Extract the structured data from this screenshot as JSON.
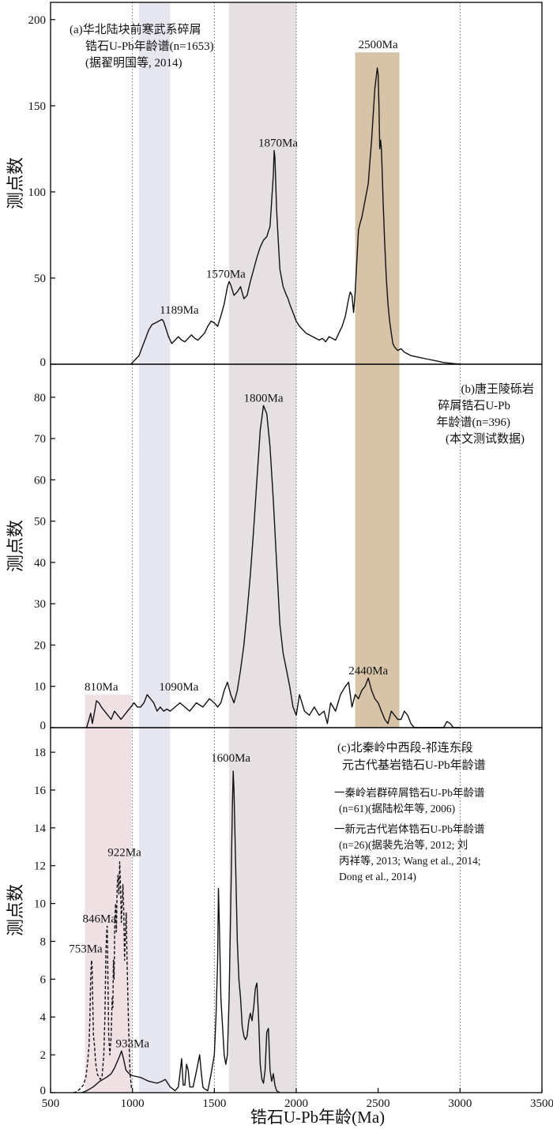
{
  "chart_data": {
    "type": "line",
    "xlabel": "锆石U-Pb年龄(Ma)",
    "xlim": [
      500,
      3500
    ],
    "xticks": [
      500,
      1000,
      1500,
      2000,
      2500,
      3000,
      3500
    ],
    "ref_lines_x": [
      1000,
      1500,
      2000,
      3000
    ],
    "colors": {
      "blue_band": "#e6e6f0",
      "grey_band": "#e7e0e2",
      "brown_band": "#d7c4a8",
      "pink_band": "#f0e2e4",
      "curve": "#111111"
    },
    "panels": [
      {
        "id": "a",
        "ylabel": "测点数",
        "ylim": [
          0,
          210
        ],
        "yticks": [
          0,
          50,
          100,
          150,
          200
        ],
        "annotation": [
          "(a)华北陆块前寒武系碎屑",
          "锆石U-Pb年龄谱(n=1653)",
          "(据翟明国等, 2014)"
        ],
        "bands": [
          {
            "from": 1040,
            "to": 1230,
            "color": "blue_band"
          },
          {
            "from": 1590,
            "to": 2000,
            "color": "grey_band"
          },
          {
            "from": 2360,
            "to": 2630,
            "color": "brown_band",
            "ymax": 181
          }
        ],
        "peak_labels": [
          {
            "text": "1189Ma",
            "x": 1189,
            "y": 27
          },
          {
            "text": "1570Ma",
            "x": 1570,
            "y": 48
          },
          {
            "text": "1870Ma",
            "x": 1870,
            "y": 124
          },
          {
            "text": "2500Ma",
            "x": 2500,
            "y": 181
          }
        ],
        "series": [
          {
            "style": "solid",
            "x": [
              990,
              1000,
              1020,
              1040,
              1060,
              1080,
              1100,
              1120,
              1140,
              1160,
              1180,
              1189,
              1200,
              1220,
              1240,
              1260,
              1280,
              1300,
              1320,
              1340,
              1360,
              1380,
              1400,
              1420,
              1440,
              1460,
              1480,
              1500,
              1520,
              1540,
              1560,
              1580,
              1590,
              1600,
              1620,
              1640,
              1660,
              1680,
              1700,
              1720,
              1740,
              1760,
              1780,
              1800,
              1820,
              1840,
              1850,
              1860,
              1865,
              1870,
              1880,
              1890,
              1900,
              1920,
              1940,
              1950,
              1960,
              1980,
              2000,
              2020,
              2040,
              2060,
              2080,
              2100,
              2120,
              2140,
              2160,
              2180,
              2200,
              2220,
              2240,
              2260,
              2280,
              2300,
              2320,
              2330,
              2340,
              2350,
              2360,
              2370,
              2380,
              2390,
              2400,
              2410,
              2420,
              2430,
              2440,
              2450,
              2460,
              2470,
              2480,
              2490,
              2495,
              2500,
              2505,
              2510,
              2515,
              2520,
              2525,
              2530,
              2540,
              2550,
              2560,
              2570,
              2580,
              2590,
              2600,
              2620,
              2640,
              2660,
              2680,
              2700,
              2750,
              2800,
              2850,
              2900,
              2950,
              3000
            ],
            "y": [
              0,
              1,
              3,
              5,
              10,
              15,
              20,
              23,
              24,
              25,
              26,
              25,
              22,
              16,
              12,
              14,
              16,
              14,
              13,
              15,
              17,
              15,
              14,
              16,
              18,
              22,
              25,
              24,
              22,
              28,
              35,
              45,
              48,
              46,
              40,
              42,
              45,
              38,
              40,
              48,
              55,
              62,
              68,
              72,
              74,
              80,
              95,
              110,
              124,
              120,
              90,
              72,
              55,
              45,
              40,
              38,
              35,
              30,
              25,
              22,
              20,
              18,
              17,
              16,
              15,
              14,
              15,
              13,
              16,
              15,
              14,
              18,
              22,
              28,
              38,
              42,
              40,
              30,
              42,
              60,
              78,
              82,
              85,
              90,
              95,
              100,
              105,
              118,
              130,
              145,
              160,
              168,
              172,
              168,
              150,
              125,
              130,
              125,
              110,
              95,
              70,
              50,
              35,
              25,
              18,
              12,
              10,
              8,
              9,
              7,
              6,
              5,
              4,
              3,
              2,
              1,
              0.5,
              0
            ]
          }
        ]
      },
      {
        "id": "b",
        "ylabel": "测点数",
        "ylim": [
          0,
          88
        ],
        "yticks": [
          0,
          10,
          20,
          30,
          40,
          50,
          60,
          70,
          80
        ],
        "annotation": [
          "(b)唐王陵砾岩",
          "碎屑锆石U-Pb",
          "年龄谱(n=396)",
          "(本文测试数据)"
        ],
        "bands": [
          {
            "from": 710,
            "to": 995,
            "color": "pink_band",
            "ymax": 8
          },
          {
            "from": 1040,
            "to": 1230,
            "color": "blue_band"
          },
          {
            "from": 1590,
            "to": 2000,
            "color": "grey_band"
          },
          {
            "from": 2360,
            "to": 2630,
            "color": "brown_band"
          }
        ],
        "peak_labels": [
          {
            "text": "810Ma",
            "x": 810,
            "y": 8
          },
          {
            "text": "1090Ma",
            "x": 1090,
            "y": 8
          },
          {
            "text": "1800Ma",
            "x": 1800,
            "y": 78
          },
          {
            "text": "2440Ma",
            "x": 2440,
            "y": 12
          }
        ],
        "series": [
          {
            "style": "solid",
            "x": [
              720,
              735,
              745,
              755,
              765,
              780,
              795,
              810,
              830,
              850,
              870,
              890,
              910,
              930,
              950,
              970,
              990,
              1010,
              1030,
              1050,
              1070,
              1090,
              1110,
              1130,
              1150,
              1170,
              1190,
              1210,
              1230,
              1260,
              1290,
              1320,
              1350,
              1390,
              1430,
              1470,
              1500,
              1520,
              1540,
              1560,
              1580,
              1600,
              1620,
              1640,
              1660,
              1680,
              1700,
              1720,
              1740,
              1760,
              1780,
              1800,
              1820,
              1840,
              1860,
              1880,
              1900,
              1920,
              1940,
              1960,
              1980,
              2000,
              2020,
              2050,
              2080,
              2110,
              2140,
              2170,
              2190,
              2210,
              2240,
              2270,
              2300,
              2320,
              2340,
              2360,
              2380,
              2400,
              2420,
              2440,
              2460,
              2480,
              2500,
              2520,
              2540,
              2560,
              2580,
              2600,
              2620,
              2640,
              2660,
              2680,
              2700,
              2720,
              2760,
              2800,
              2850,
              2900,
              2920,
              2940,
              2960,
              2980,
              3000
            ],
            "y": [
              0,
              2,
              3.5,
              1,
              3,
              6.5,
              6,
              5,
              4,
              3,
              2,
              4,
              3,
              2,
              3,
              4,
              5,
              6,
              5,
              5,
              6,
              8,
              7,
              6,
              4,
              5,
              4,
              4.5,
              4,
              5,
              6,
              5,
              4,
              6,
              5,
              7,
              6,
              5,
              6,
              9,
              11,
              8,
              6,
              9,
              14,
              20,
              28,
              37,
              48,
              60,
              72,
              78,
              76,
              68,
              55,
              40,
              25,
              18,
              14,
              10,
              5,
              3,
              8,
              4,
              3,
              5,
              3,
              4,
              1,
              6,
              4,
              8,
              10,
              11,
              5,
              8,
              7,
              9,
              10,
              12,
              9,
              7,
              6,
              4,
              2,
              1,
              4,
              3,
              2,
              2,
              4,
              3,
              1,
              0,
              0,
              0,
              0,
              0,
              1.5,
              1,
              0,
              0,
              0
            ]
          }
        ]
      },
      {
        "id": "c",
        "ylabel": "测点数",
        "ylim": [
          0,
          19.3
        ],
        "yticks": [
          0,
          2,
          4,
          6,
          8,
          10,
          12,
          14,
          16,
          18
        ],
        "annotation": [
          "(c)北秦岭中西段-祁连东段",
          "元古代基岩锆石U-Pb年龄谱"
        ],
        "legend": [
          {
            "style": "solid",
            "lines": [
              "一秦岭岩群碎屑锆石U-Pb年龄谱",
              "(n=61)(据陆松年等, 2006)"
            ]
          },
          {
            "style": "dashed",
            "lines": [
              "一新元古代岩体锆石U-Pb年龄谱",
              "(n=26)(据裴先治等, 2012; 刘",
              "丙祥等, 2013; Wang et al., 2014;",
              "Dong et al., 2014)"
            ]
          }
        ],
        "bands": [
          {
            "from": 710,
            "to": 995,
            "color": "pink_band"
          },
          {
            "from": 1040,
            "to": 1230,
            "color": "blue_band"
          },
          {
            "from": 1590,
            "to": 2000,
            "color": "grey_band"
          }
        ],
        "peak_labels": [
          {
            "text": "753Ma",
            "x": 753,
            "y": 7.2
          },
          {
            "text": "846Ma",
            "x": 846,
            "y": 8.8
          },
          {
            "text": "922Ma",
            "x": 922,
            "y": 12.3
          },
          {
            "text": "933Ma",
            "x": 933,
            "y": 2.2
          },
          {
            "text": "1600Ma",
            "x": 1600,
            "y": 17.3
          }
        ],
        "series": [
          {
            "style": "solid",
            "x": [
              690,
              720,
              760,
              800,
              840,
              870,
              890,
              910,
              920,
              933,
              945,
              960,
              980,
              1000,
              1050,
              1100,
              1150,
              1180,
              1200,
              1230,
              1260,
              1280,
              1290,
              1300,
              1310,
              1320,
              1330,
              1340,
              1350,
              1370,
              1390,
              1410,
              1420,
              1430,
              1440,
              1460,
              1480,
              1500,
              1510,
              1520,
              1525,
              1530,
              1540,
              1550,
              1560,
              1570,
              1580,
              1590,
              1600,
              1610,
              1615,
              1620,
              1630,
              1640,
              1650,
              1660,
              1670,
              1680,
              1690,
              1700,
              1710,
              1720,
              1730,
              1740,
              1750,
              1760,
              1770,
              1780,
              1790,
              1800,
              1810,
              1820,
              1830,
              1840,
              1850,
              1860,
              1870,
              1880,
              1890,
              1900
            ],
            "y": [
              0,
              0.1,
              0.3,
              0.6,
              0.8,
              1.0,
              1.3,
              1.7,
              1.9,
              2.2,
              1.8,
              1.2,
              1.0,
              0.9,
              0.8,
              0.6,
              0.5,
              0.6,
              0.7,
              0.3,
              0.1,
              0.3,
              1.0,
              1.8,
              0.4,
              0.4,
              1.5,
              1.2,
              0.3,
              0.3,
              1.1,
              2.0,
              1.1,
              0.3,
              0.2,
              0.1,
              1.0,
              2.0,
              4.0,
              7.0,
              10.8,
              9.0,
              5.0,
              3.5,
              2.0,
              1.5,
              2.0,
              5.0,
              10.0,
              15.0,
              17.0,
              16.0,
              12.0,
              8.0,
              6.0,
              5.0,
              3.5,
              3.0,
              2.8,
              3.0,
              3.8,
              4.2,
              3.8,
              4.5,
              5.5,
              5.8,
              4.0,
              1.5,
              0.7,
              0.5,
              1.2,
              3.2,
              3.4,
              1.2,
              0.6,
              1.0,
              0.4,
              0.1,
              0.05,
              0
            ]
          },
          {
            "style": "dashed",
            "x": [
              640,
              660,
              680,
              700,
              715,
              725,
              735,
              740,
              745,
              750,
              753,
              757,
              762,
              768,
              775,
              785,
              795,
              805,
              815,
              825,
              832,
              838,
              843,
              846,
              850,
              855,
              862,
              870,
              876,
              880,
              884,
              888,
              892,
              897,
              902,
              907,
              912,
              917,
              922,
              927,
              932,
              937,
              942,
              947,
              952,
              957,
              962,
              967,
              972,
              978,
              985,
              995
            ],
            "y": [
              0,
              0.05,
              0.2,
              0.4,
              0.8,
              1.5,
              2.5,
              4.0,
              6.0,
              7.0,
              6.8,
              5.0,
              3.0,
              2.5,
              1.6,
              1.0,
              0.8,
              0.7,
              0.9,
              2.0,
              4.0,
              7.5,
              8.5,
              8.8,
              6.0,
              3.0,
              2.0,
              3.0,
              5.0,
              4.5,
              7.0,
              6.0,
              9.0,
              10.0,
              8.5,
              11.0,
              11.5,
              10.5,
              12.2,
              11.0,
              9.0,
              10.0,
              11.0,
              9.5,
              7.0,
              8.5,
              9.5,
              7.0,
              5.0,
              3.0,
              1.0,
              0.2
            ]
          }
        ]
      }
    ]
  }
}
